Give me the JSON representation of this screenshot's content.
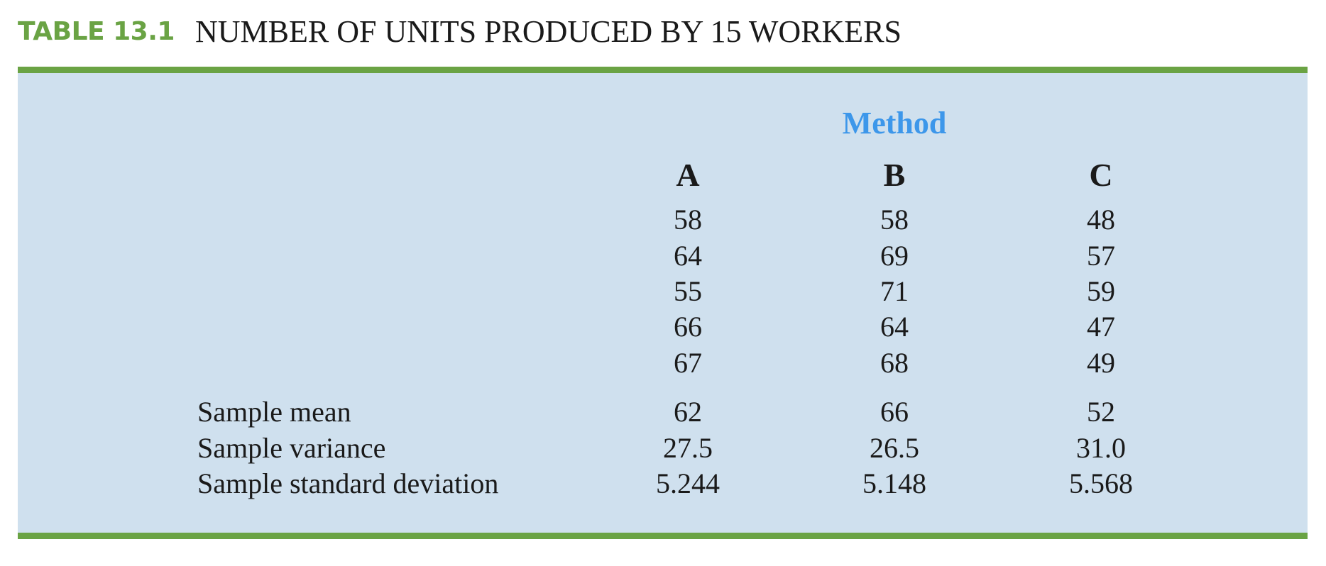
{
  "caption": {
    "label": "TABLE 13.1",
    "title": "NUMBER OF UNITS PRODUCED BY 15 WORKERS"
  },
  "table": {
    "group_header": "Method",
    "columns": [
      "A",
      "B",
      "C"
    ],
    "data_rows": [
      [
        "58",
        "58",
        "48"
      ],
      [
        "64",
        "69",
        "57"
      ],
      [
        "55",
        "71",
        "59"
      ],
      [
        "66",
        "64",
        "47"
      ],
      [
        "67",
        "68",
        "49"
      ]
    ],
    "summary_rows": [
      {
        "label": "Sample mean",
        "values": [
          "62",
          "66",
          "52"
        ]
      },
      {
        "label": "Sample variance",
        "values": [
          "27.5",
          "26.5",
          "31.0"
        ]
      },
      {
        "label": "Sample standard deviation",
        "values": [
          "5.244",
          "5.148",
          "5.568"
        ]
      }
    ]
  },
  "colors": {
    "label_green": "#6aa344",
    "rule_green": "#6aa344",
    "panel_blue": "#cfe0ee",
    "method_blue": "#3d97ea"
  }
}
